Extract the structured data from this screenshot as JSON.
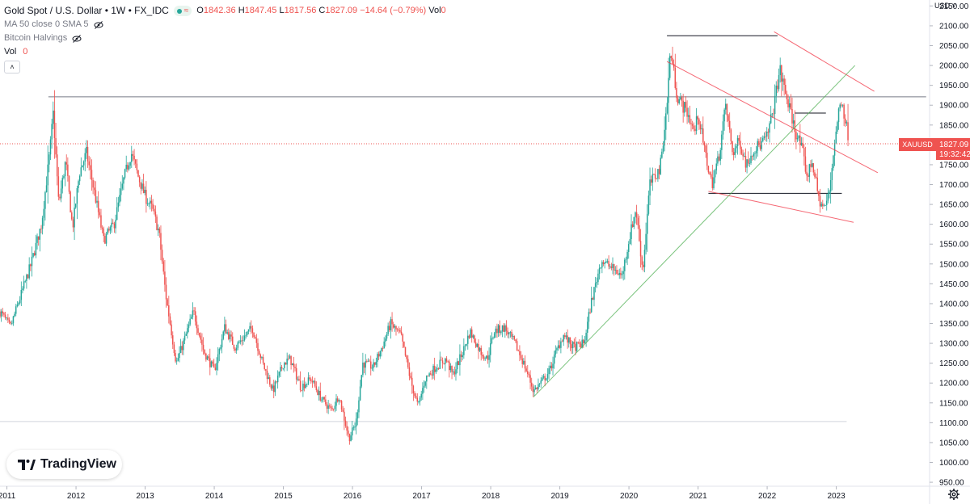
{
  "header": {
    "title": "Gold Spot / U.S. Dollar • 1W • FX_IDC",
    "wave_glyph": "≈",
    "ohlc": {
      "o_label": "O",
      "o": "1842.36",
      "h_label": "H",
      "h": "1847.45",
      "l_label": "L",
      "l": "1817.56",
      "c_label": "C",
      "c": "1827.09",
      "change": "−14.64 (−0.79%)",
      "vol_label": "Vol",
      "vol_value": "0"
    },
    "indicator_1": "MA 50 close 0 SMA 5",
    "indicator_2": "Bitcoin Halvings",
    "indicator_3": "Vol",
    "indicator_3_value": "0",
    "collapse_glyph": "˄"
  },
  "logo": {
    "text": "TradingView"
  },
  "price_scale": {
    "currency": "USD",
    "currency_arrow": "˅"
  },
  "last_price": {
    "symbol": "XAUUSD",
    "price": "1827.09",
    "countdown": "19:32:42"
  },
  "colors": {
    "up": "#26a69a",
    "down": "#ef5350",
    "hline": "#787b86",
    "trend_red": "#f23645",
    "trend_green": "#4caf50"
  },
  "chart_data": {
    "type": "candlestick",
    "symbol": "XAUUSD",
    "interval": "1W",
    "y_ticks": [
      950,
      1000,
      1050,
      1100,
      1150,
      1200,
      1250,
      1300,
      1350,
      1400,
      1450,
      1500,
      1550,
      1600,
      1650,
      1700,
      1750,
      1800,
      1850,
      1900,
      1950,
      2000,
      2050,
      2100,
      2150
    ],
    "y_tick_labels": [
      "950.00",
      "1000.00",
      "1050.00",
      "1100.00",
      "1150.00",
      "1200.00",
      "1250.00",
      "1300.00",
      "1350.00",
      "1400.00",
      "1450.00",
      "1500.00",
      "1550.00",
      "1600.00",
      "1650.00",
      "1700.00",
      "1750.00",
      "1800.00",
      "1850.00",
      "1900.00",
      "1950.00",
      "2000.00",
      "2050.00",
      "2100.00",
      "2150.00"
    ],
    "x_ticks": [
      {
        "label": "2011",
        "t": 2011.0
      },
      {
        "label": "2012",
        "t": 2012.0
      },
      {
        "label": "2013",
        "t": 2013.0
      },
      {
        "label": "2014",
        "t": 2014.0
      },
      {
        "label": "2015",
        "t": 2015.0
      },
      {
        "label": "2016",
        "t": 2016.0
      },
      {
        "label": "2017",
        "t": 2017.0
      },
      {
        "label": "2018",
        "t": 2018.0
      },
      {
        "label": "2019",
        "t": 2019.0
      },
      {
        "label": "2020",
        "t": 2020.0
      },
      {
        "label": "2021",
        "t": 2021.0
      },
      {
        "label": "2022",
        "t": 2022.0
      },
      {
        "label": "2023",
        "t": 2023.0
      }
    ],
    "ylim": [
      940,
      2165
    ],
    "xlim": [
      2010.9,
      2024.35
    ],
    "price_path": [
      [
        2010.9,
        1380
      ],
      [
        2011.05,
        1340
      ],
      [
        2011.2,
        1420
      ],
      [
        2011.35,
        1500
      ],
      [
        2011.5,
        1600
      ],
      [
        2011.62,
        1780
      ],
      [
        2011.67,
        1880
      ],
      [
        2011.75,
        1650
      ],
      [
        2011.85,
        1760
      ],
      [
        2011.95,
        1590
      ],
      [
        2012.05,
        1730
      ],
      [
        2012.15,
        1780
      ],
      [
        2012.3,
        1650
      ],
      [
        2012.4,
        1560
      ],
      [
        2012.55,
        1600
      ],
      [
        2012.7,
        1720
      ],
      [
        2012.8,
        1780
      ],
      [
        2012.9,
        1720
      ],
      [
        2013.0,
        1670
      ],
      [
        2013.1,
        1640
      ],
      [
        2013.2,
        1580
      ],
      [
        2013.3,
        1420
      ],
      [
        2013.45,
        1250
      ],
      [
        2013.55,
        1300
      ],
      [
        2013.7,
        1380
      ],
      [
        2013.85,
        1280
      ],
      [
        2014.0,
        1230
      ],
      [
        2014.15,
        1340
      ],
      [
        2014.3,
        1290
      ],
      [
        2014.45,
        1320
      ],
      [
        2014.55,
        1340
      ],
      [
        2014.7,
        1250
      ],
      [
        2014.85,
        1180
      ],
      [
        2015.0,
        1250
      ],
      [
        2015.1,
        1260
      ],
      [
        2015.25,
        1190
      ],
      [
        2015.4,
        1210
      ],
      [
        2015.55,
        1160
      ],
      [
        2015.7,
        1130
      ],
      [
        2015.8,
        1170
      ],
      [
        2015.95,
        1060
      ],
      [
        2016.05,
        1100
      ],
      [
        2016.15,
        1250
      ],
      [
        2016.3,
        1240
      ],
      [
        2016.45,
        1300
      ],
      [
        2016.55,
        1350
      ],
      [
        2016.7,
        1320
      ],
      [
        2016.85,
        1200
      ],
      [
        2016.95,
        1140
      ],
      [
        2017.05,
        1210
      ],
      [
        2017.2,
        1240
      ],
      [
        2017.35,
        1260
      ],
      [
        2017.45,
        1220
      ],
      [
        2017.6,
        1280
      ],
      [
        2017.7,
        1330
      ],
      [
        2017.85,
        1280
      ],
      [
        2017.95,
        1260
      ],
      [
        2018.05,
        1330
      ],
      [
        2018.2,
        1340
      ],
      [
        2018.35,
        1300
      ],
      [
        2018.5,
        1240
      ],
      [
        2018.62,
        1180
      ],
      [
        2018.72,
        1200
      ],
      [
        2018.85,
        1230
      ],
      [
        2018.95,
        1280
      ],
      [
        2019.05,
        1320
      ],
      [
        2019.2,
        1290
      ],
      [
        2019.35,
        1300
      ],
      [
        2019.45,
        1400
      ],
      [
        2019.6,
        1510
      ],
      [
        2019.75,
        1490
      ],
      [
        2019.9,
        1470
      ],
      [
        2020.0,
        1560
      ],
      [
        2020.1,
        1640
      ],
      [
        2020.2,
        1480
      ],
      [
        2020.3,
        1700
      ],
      [
        2020.45,
        1740
      ],
      [
        2020.55,
        1900
      ],
      [
        2020.6,
        2040
      ],
      [
        2020.7,
        1920
      ],
      [
        2020.85,
        1880
      ],
      [
        2020.95,
        1830
      ],
      [
        2021.0,
        1880
      ],
      [
        2021.1,
        1780
      ],
      [
        2021.2,
        1700
      ],
      [
        2021.3,
        1770
      ],
      [
        2021.4,
        1900
      ],
      [
        2021.5,
        1780
      ],
      [
        2021.6,
        1810
      ],
      [
        2021.7,
        1750
      ],
      [
        2021.8,
        1790
      ],
      [
        2021.9,
        1800
      ],
      [
        2022.0,
        1820
      ],
      [
        2022.1,
        1900
      ],
      [
        2022.18,
        1990
      ],
      [
        2022.28,
        1920
      ],
      [
        2022.4,
        1840
      ],
      [
        2022.5,
        1790
      ],
      [
        2022.58,
        1720
      ],
      [
        2022.65,
        1760
      ],
      [
        2022.75,
        1660
      ],
      [
        2022.83,
        1640
      ],
      [
        2022.9,
        1680
      ],
      [
        2022.97,
        1800
      ],
      [
        2023.03,
        1880
      ],
      [
        2023.08,
        1920
      ],
      [
        2023.12,
        1870
      ],
      [
        2023.17,
        1827
      ]
    ],
    "drawings": {
      "horizontal_lines": [
        {
          "y": 1921,
          "x0": 2011.6,
          "x1": 2024.3,
          "color": "#787b86"
        },
        {
          "y": 2075,
          "x0": 2020.55,
          "x1": 2022.15,
          "color": "#131722"
        },
        {
          "y": 1880,
          "x0": 2022.4,
          "x1": 2022.85,
          "color": "#131722"
        },
        {
          "y": 1678,
          "x0": 2021.15,
          "x1": 2023.08,
          "color": "#131722"
        },
        {
          "y": 1103,
          "x0": 2010.9,
          "x1": 2023.15,
          "color": "#d1d4dc"
        }
      ],
      "trend_lines": [
        {
          "x0": 2020.55,
          "y0": 2010,
          "x1": 2023.6,
          "y1": 1730,
          "color": "#f23645"
        },
        {
          "x0": 2021.15,
          "y0": 1683,
          "x1": 2023.25,
          "y1": 1605,
          "color": "#f23645"
        },
        {
          "x0": 2022.1,
          "y0": 2085,
          "x1": 2023.55,
          "y1": 1935,
          "color": "#f23645"
        },
        {
          "x0": 2018.62,
          "y0": 1165,
          "x1": 2023.27,
          "y1": 2000,
          "color": "#4caf50"
        }
      ]
    }
  }
}
